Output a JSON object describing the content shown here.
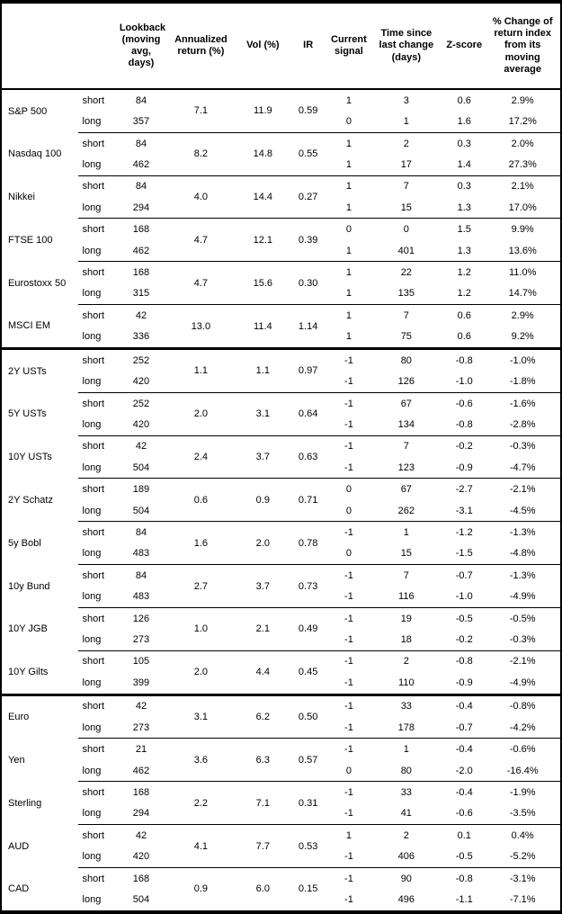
{
  "colors": {
    "background": "#ffffff",
    "text": "#000000",
    "border": "#000000"
  },
  "chart_data": {
    "type": "table",
    "row_labels": {
      "short": "short",
      "long": "long"
    },
    "columns": [
      "Lookback\n(moving\navg, days)",
      "Annualized\nreturn (%)",
      "Vol (%)",
      "IR",
      "Current\nsignal",
      "Time since\nlast change\n(days)",
      "Z-score",
      "% Change of\nreturn index\nfrom its\nmoving\naverage"
    ],
    "sections": [
      {
        "assets": [
          {
            "name": "S&P 500",
            "ann_return": "7.1",
            "vol": "11.9",
            "ir": "0.59",
            "short": {
              "lookback": "84",
              "signal": "1",
              "time": "3",
              "z": "0.6",
              "pct": "2.9%"
            },
            "long": {
              "lookback": "357",
              "signal": "0",
              "time": "1",
              "z": "1.6",
              "pct": "17.2%"
            }
          },
          {
            "name": "Nasdaq 100",
            "ann_return": "8.2",
            "vol": "14.8",
            "ir": "0.55",
            "short": {
              "lookback": "84",
              "signal": "1",
              "time": "2",
              "z": "0.3",
              "pct": "2.0%"
            },
            "long": {
              "lookback": "462",
              "signal": "1",
              "time": "17",
              "z": "1.4",
              "pct": "27.3%"
            }
          },
          {
            "name": "Nikkei",
            "ann_return": "4.0",
            "vol": "14.4",
            "ir": "0.27",
            "short": {
              "lookback": "84",
              "signal": "1",
              "time": "7",
              "z": "0.3",
              "pct": "2.1%"
            },
            "long": {
              "lookback": "294",
              "signal": "1",
              "time": "15",
              "z": "1.3",
              "pct": "17.0%"
            }
          },
          {
            "name": "FTSE 100",
            "ann_return": "4.7",
            "vol": "12.1",
            "ir": "0.39",
            "short": {
              "lookback": "168",
              "signal": "0",
              "time": "0",
              "z": "1.5",
              "pct": "9.9%"
            },
            "long": {
              "lookback": "462",
              "signal": "1",
              "time": "401",
              "z": "1.3",
              "pct": "13.6%"
            }
          },
          {
            "name": "Eurostoxx 50",
            "ann_return": "4.7",
            "vol": "15.6",
            "ir": "0.30",
            "short": {
              "lookback": "168",
              "signal": "1",
              "time": "22",
              "z": "1.2",
              "pct": "11.0%"
            },
            "long": {
              "lookback": "315",
              "signal": "1",
              "time": "135",
              "z": "1.2",
              "pct": "14.7%"
            }
          },
          {
            "name": "MSCI EM",
            "ann_return": "13.0",
            "vol": "11.4",
            "ir": "1.14",
            "short": {
              "lookback": "42",
              "signal": "1",
              "time": "7",
              "z": "0.6",
              "pct": "2.9%"
            },
            "long": {
              "lookback": "336",
              "signal": "1",
              "time": "75",
              "z": "0.6",
              "pct": "9.2%"
            }
          }
        ]
      },
      {
        "assets": [
          {
            "name": "2Y USTs",
            "ann_return": "1.1",
            "vol": "1.1",
            "ir": "0.97",
            "short": {
              "lookback": "252",
              "signal": "-1",
              "time": "80",
              "z": "-0.8",
              "pct": "-1.0%"
            },
            "long": {
              "lookback": "420",
              "signal": "-1",
              "time": "126",
              "z": "-1.0",
              "pct": "-1.8%"
            }
          },
          {
            "name": "5Y USTs",
            "ann_return": "2.0",
            "vol": "3.1",
            "ir": "0.64",
            "short": {
              "lookback": "252",
              "signal": "-1",
              "time": "67",
              "z": "-0.6",
              "pct": "-1.6%"
            },
            "long": {
              "lookback": "420",
              "signal": "-1",
              "time": "134",
              "z": "-0.8",
              "pct": "-2.8%"
            }
          },
          {
            "name": "10Y USTs",
            "ann_return": "2.4",
            "vol": "3.7",
            "ir": "0.63",
            "short": {
              "lookback": "42",
              "signal": "-1",
              "time": "7",
              "z": "-0.2",
              "pct": "-0.3%"
            },
            "long": {
              "lookback": "504",
              "signal": "-1",
              "time": "123",
              "z": "-0.9",
              "pct": "-4.7%"
            }
          },
          {
            "name": "2Y Schatz",
            "ann_return": "0.6",
            "vol": "0.9",
            "ir": "0.71",
            "short": {
              "lookback": "189",
              "signal": "0",
              "time": "67",
              "z": "-2.7",
              "pct": "-2.1%"
            },
            "long": {
              "lookback": "504",
              "signal": "0",
              "time": "262",
              "z": "-3.1",
              "pct": "-4.5%"
            }
          },
          {
            "name": "5y Bobl",
            "ann_return": "1.6",
            "vol": "2.0",
            "ir": "0.78",
            "short": {
              "lookback": "84",
              "signal": "-1",
              "time": "1",
              "z": "-1.2",
              "pct": "-1.3%"
            },
            "long": {
              "lookback": "483",
              "signal": "0",
              "time": "15",
              "z": "-1.5",
              "pct": "-4.8%"
            }
          },
          {
            "name": "10y Bund",
            "ann_return": "2.7",
            "vol": "3.7",
            "ir": "0.73",
            "short": {
              "lookback": "84",
              "signal": "-1",
              "time": "7",
              "z": "-0.7",
              "pct": "-1.3%"
            },
            "long": {
              "lookback": "483",
              "signal": "-1",
              "time": "116",
              "z": "-1.0",
              "pct": "-4.9%"
            }
          },
          {
            "name": "10Y JGB",
            "ann_return": "1.0",
            "vol": "2.1",
            "ir": "0.49",
            "short": {
              "lookback": "126",
              "signal": "-1",
              "time": "19",
              "z": "-0.5",
              "pct": "-0.5%"
            },
            "long": {
              "lookback": "273",
              "signal": "-1",
              "time": "18",
              "z": "-0.2",
              "pct": "-0.3%"
            }
          },
          {
            "name": "10Y Gilts",
            "ann_return": "2.0",
            "vol": "4.4",
            "ir": "0.45",
            "short": {
              "lookback": "105",
              "signal": "-1",
              "time": "2",
              "z": "-0.8",
              "pct": "-2.1%"
            },
            "long": {
              "lookback": "399",
              "signal": "-1",
              "time": "110",
              "z": "-0.9",
              "pct": "-4.9%"
            }
          }
        ]
      },
      {
        "assets": [
          {
            "name": "Euro",
            "ann_return": "3.1",
            "vol": "6.2",
            "ir": "0.50",
            "short": {
              "lookback": "42",
              "signal": "-1",
              "time": "33",
              "z": "-0.4",
              "pct": "-0.8%"
            },
            "long": {
              "lookback": "273",
              "signal": "-1",
              "time": "178",
              "z": "-0.7",
              "pct": "-4.2%"
            }
          },
          {
            "name": "Yen",
            "ann_return": "3.6",
            "vol": "6.3",
            "ir": "0.57",
            "short": {
              "lookback": "21",
              "signal": "-1",
              "time": "1",
              "z": "-0.4",
              "pct": "-0.6%"
            },
            "long": {
              "lookback": "462",
              "signal": "0",
              "time": "80",
              "z": "-2.0",
              "pct": "-16.4%"
            }
          },
          {
            "name": "Sterling",
            "ann_return": "2.2",
            "vol": "7.1",
            "ir": "0.31",
            "short": {
              "lookback": "168",
              "signal": "-1",
              "time": "33",
              "z": "-0.4",
              "pct": "-1.9%"
            },
            "long": {
              "lookback": "294",
              "signal": "-1",
              "time": "41",
              "z": "-0.6",
              "pct": "-3.5%"
            }
          },
          {
            "name": "AUD",
            "ann_return": "4.1",
            "vol": "7.7",
            "ir": "0.53",
            "short": {
              "lookback": "42",
              "signal": "1",
              "time": "2",
              "z": "0.1",
              "pct": "0.4%"
            },
            "long": {
              "lookback": "420",
              "signal": "-1",
              "time": "406",
              "z": "-0.5",
              "pct": "-5.2%"
            }
          },
          {
            "name": "CAD",
            "ann_return": "0.9",
            "vol": "6.0",
            "ir": "0.15",
            "short": {
              "lookback": "168",
              "signal": "-1",
              "time": "90",
              "z": "-0.8",
              "pct": "-3.1%"
            },
            "long": {
              "lookback": "504",
              "signal": "-1",
              "time": "496",
              "z": "-1.1",
              "pct": "-7.1%"
            }
          }
        ]
      }
    ]
  }
}
